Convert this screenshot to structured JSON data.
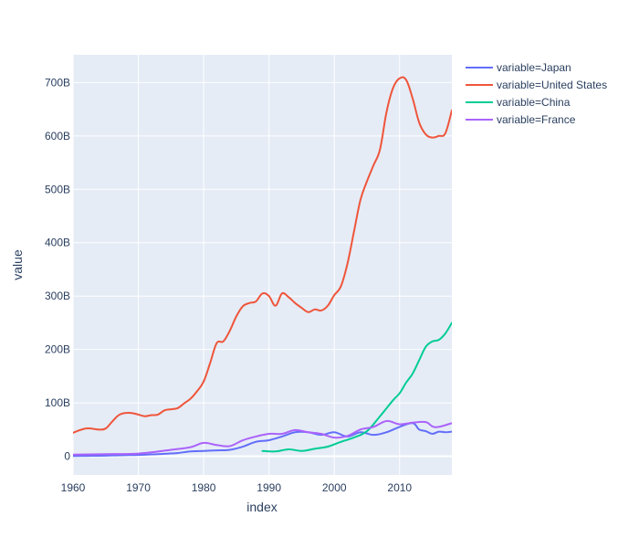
{
  "chart_data": {
    "type": "line",
    "title": "",
    "xlabel": "index",
    "ylabel": "value",
    "xlim": [
      1960,
      2018
    ],
    "ylim": [
      -35,
      752
    ],
    "x_ticks": [
      1960,
      1970,
      1980,
      1990,
      2000,
      2010
    ],
    "y_ticks": [
      {
        "value": 0,
        "label": "0"
      },
      {
        "value": 100,
        "label": "100B"
      },
      {
        "value": 200,
        "label": "200B"
      },
      {
        "value": 300,
        "label": "300B"
      },
      {
        "value": 400,
        "label": "400B"
      },
      {
        "value": 500,
        "label": "500B"
      },
      {
        "value": 600,
        "label": "600B"
      },
      {
        "value": 700,
        "label": "700B"
      }
    ],
    "value_unit": "billions",
    "grid": true,
    "legend_position": "right",
    "series": [
      {
        "name": "variable=Japan",
        "color": "#636efa",
        "x": [
          1960,
          1962,
          1964,
          1966,
          1968,
          1970,
          1972,
          1974,
          1976,
          1978,
          1980,
          1982,
          1984,
          1986,
          1988,
          1990,
          1992,
          1994,
          1996,
          1998,
          2000,
          2002,
          2004,
          2006,
          2008,
          2010,
          2012,
          2013,
          2014,
          2015,
          2016,
          2017,
          2018
        ],
        "values": [
          0.5,
          0.7,
          1,
          1.5,
          2,
          2.5,
          3.5,
          4.5,
          6,
          9,
          10,
          11,
          12,
          18,
          27,
          30,
          37,
          45,
          45,
          40,
          45,
          37,
          45,
          40,
          45,
          55,
          62,
          50,
          47,
          42,
          46,
          45,
          46
        ]
      },
      {
        "name": "variable=United States",
        "color": "#ef553b",
        "x": [
          1960,
          1962,
          1964,
          1965,
          1966,
          1967,
          1968,
          1969,
          1970,
          1971,
          1972,
          1973,
          1974,
          1975,
          1976,
          1977,
          1978,
          1979,
          1980,
          1981,
          1982,
          1983,
          1984,
          1985,
          1986,
          1987,
          1988,
          1989,
          1990,
          1991,
          1992,
          1993,
          1994,
          1995,
          1996,
          1997,
          1998,
          1999,
          2000,
          2001,
          2002,
          2003,
          2004,
          2005,
          2006,
          2007,
          2008,
          2009,
          2010,
          2011,
          2012,
          2013,
          2014,
          2015,
          2016,
          2017,
          2018
        ],
        "values": [
          44,
          52,
          50,
          52,
          65,
          77,
          81,
          81,
          78,
          75,
          77,
          78,
          86,
          88,
          90,
          99,
          108,
          122,
          140,
          175,
          212,
          215,
          235,
          262,
          281,
          287,
          290,
          305,
          300,
          282,
          305,
          298,
          287,
          278,
          270,
          275,
          273,
          282,
          302,
          318,
          360,
          420,
          480,
          515,
          545,
          575,
          645,
          690,
          708,
          705,
          670,
          625,
          603,
          597,
          600,
          605,
          648
        ]
      },
      {
        "name": "variable=China",
        "color": "#00cc96",
        "x": [
          1989,
          1991,
          1993,
          1995,
          1997,
          1999,
          2001,
          2003,
          2005,
          2007,
          2009,
          2010,
          2011,
          2012,
          2013,
          2014,
          2015,
          2016,
          2017,
          2018
        ],
        "values": [
          10,
          9,
          13,
          10,
          14,
          18,
          27,
          35,
          47,
          75,
          105,
          118,
          138,
          155,
          180,
          205,
          215,
          218,
          230,
          250
        ]
      },
      {
        "name": "variable=France",
        "color": "#ab63fa",
        "x": [
          1960,
          1965,
          1970,
          1975,
          1978,
          1980,
          1982,
          1984,
          1986,
          1988,
          1990,
          1992,
          1994,
          1996,
          1998,
          2000,
          2002,
          2004,
          2006,
          2008,
          2010,
          2012,
          2014,
          2015,
          2016,
          2018
        ],
        "values": [
          3,
          4,
          5,
          12,
          17,
          25,
          21,
          19,
          30,
          37,
          42,
          42,
          49,
          45,
          42,
          35,
          38,
          50,
          55,
          66,
          60,
          63,
          64,
          56,
          55,
          62
        ]
      }
    ]
  }
}
